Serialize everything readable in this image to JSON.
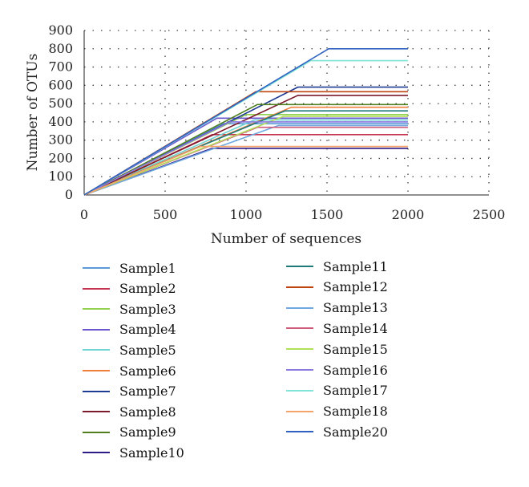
{
  "chart_data": {
    "type": "line",
    "xlabel": "Number of sequences",
    "ylabel": "Number of OTUs",
    "xlim": [
      0,
      2500
    ],
    "ylim": [
      0,
      900
    ],
    "xticks": [
      "0",
      "500",
      "1000",
      "1500",
      "2000",
      "2500"
    ],
    "yticks": [
      "0",
      "100",
      "200",
      "300",
      "400",
      "500",
      "600",
      "700",
      "800",
      "900"
    ],
    "grid": "dotted",
    "legend_position": "below",
    "series": [
      {
        "name": "Sample1",
        "color": "#5b9bd5",
        "points": [
          [
            0,
            0
          ],
          [
            860,
            390
          ],
          [
            2000,
            390
          ]
        ]
      },
      {
        "name": "Sample2",
        "color": "#c8334e",
        "points": [
          [
            0,
            0
          ],
          [
            790,
            330
          ],
          [
            2000,
            330
          ]
        ]
      },
      {
        "name": "Sample3",
        "color": "#92d050",
        "points": [
          [
            0,
            0
          ],
          [
            1000,
            440
          ],
          [
            2000,
            440
          ]
        ]
      },
      {
        "name": "Sample4",
        "color": "#6a5acd",
        "points": [
          [
            0,
            0
          ],
          [
            820,
            420
          ],
          [
            2000,
            420
          ]
        ]
      },
      {
        "name": "Sample5",
        "color": "#6fd3d3",
        "points": [
          [
            0,
            0
          ],
          [
            1050,
            410
          ],
          [
            2000,
            410
          ]
        ]
      },
      {
        "name": "Sample6",
        "color": "#f07f3c",
        "points": [
          [
            0,
            0
          ],
          [
            1280,
            480
          ],
          [
            2000,
            480
          ]
        ]
      },
      {
        "name": "Sample7",
        "color": "#1f3a93",
        "points": [
          [
            0,
            0
          ],
          [
            1320,
            590
          ],
          [
            2000,
            590
          ]
        ]
      },
      {
        "name": "Sample8",
        "color": "#7b1a2b",
        "points": [
          [
            0,
            0
          ],
          [
            1320,
            545
          ],
          [
            2000,
            545
          ]
        ]
      },
      {
        "name": "Sample9",
        "color": "#4f7f1f",
        "points": [
          [
            0,
            0
          ],
          [
            1070,
            495
          ],
          [
            2000,
            495
          ]
        ]
      },
      {
        "name": "Sample10",
        "color": "#2e1a87",
        "points": [
          [
            0,
            0
          ],
          [
            790,
            255
          ],
          [
            2000,
            255
          ]
        ]
      },
      {
        "name": "Sample11",
        "color": "#1f7a7a",
        "points": [
          [
            0,
            0
          ],
          [
            1240,
            460
          ],
          [
            2000,
            460
          ]
        ]
      },
      {
        "name": "Sample12",
        "color": "#c0440f",
        "points": [
          [
            0,
            0
          ],
          [
            1060,
            565
          ],
          [
            2000,
            565
          ]
        ]
      },
      {
        "name": "Sample13",
        "color": "#6fa8e0",
        "points": [
          [
            0,
            0
          ],
          [
            1200,
            380
          ],
          [
            2000,
            380
          ]
        ]
      },
      {
        "name": "Sample14",
        "color": "#d05a7a",
        "points": [
          [
            0,
            0
          ],
          [
            1070,
            370
          ],
          [
            2000,
            370
          ]
        ]
      },
      {
        "name": "Sample15",
        "color": "#b3e05a",
        "points": [
          [
            0,
            0
          ],
          [
            1230,
            430
          ],
          [
            2000,
            430
          ]
        ]
      },
      {
        "name": "Sample16",
        "color": "#8a78e0",
        "points": [
          [
            0,
            0
          ],
          [
            900,
            400
          ],
          [
            2000,
            400
          ]
        ]
      },
      {
        "name": "Sample17",
        "color": "#7fe3d8",
        "points": [
          [
            0,
            0
          ],
          [
            1400,
            735
          ],
          [
            2000,
            735
          ]
        ]
      },
      {
        "name": "Sample18",
        "color": "#f4a36b",
        "points": [
          [
            0,
            0
          ],
          [
            720,
            265
          ],
          [
            2000,
            265
          ]
        ]
      },
      {
        "name": "Sample20",
        "color": "#2f62c0",
        "points": [
          [
            0,
            0
          ],
          [
            1510,
            800
          ],
          [
            2000,
            800
          ]
        ]
      }
    ]
  }
}
